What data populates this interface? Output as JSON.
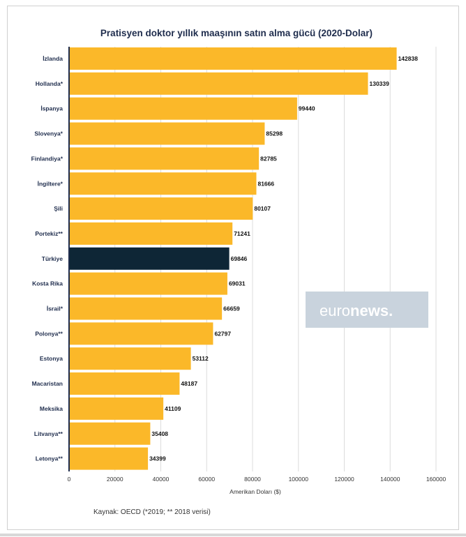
{
  "chart_data": {
    "type": "bar",
    "orientation": "horizontal",
    "title": "Pratisyen doktor yıllık maaşının satın alma gücü (2020-Dolar)",
    "xlabel": "Amerikan Doları ($)",
    "ylabel": "",
    "xlim": [
      0,
      160000
    ],
    "ticks": [
      "0",
      "20000",
      "40000",
      "60000",
      "80000",
      "100000",
      "120000",
      "140000",
      "160000"
    ],
    "grid": true,
    "categories": [
      "İzlanda",
      "Hollanda*",
      "İspanya",
      "Slovenya*",
      "Finlandiya*",
      "İngiltere*",
      "Şili",
      "Portekiz**",
      "Türkiye",
      "Kosta Rika",
      "İsrail*",
      "Polonya**",
      "Estonya",
      "Macaristan",
      "Meksika",
      "Litvanya**",
      "Letonya**"
    ],
    "values": [
      142838,
      130339,
      99440,
      85298,
      82785,
      81666,
      80107,
      71241,
      69846,
      69031,
      66659,
      62797,
      53112,
      48187,
      41109,
      35408,
      34399
    ],
    "highlight": "Türkiye",
    "bar_color": "#fbb829",
    "highlight_color": "#0e2636",
    "source": "Kaynak: OECD (*2019; ** 2018 verisi)"
  },
  "watermark": {
    "prefix": "euro",
    "suffix": "news",
    "dot": "."
  }
}
